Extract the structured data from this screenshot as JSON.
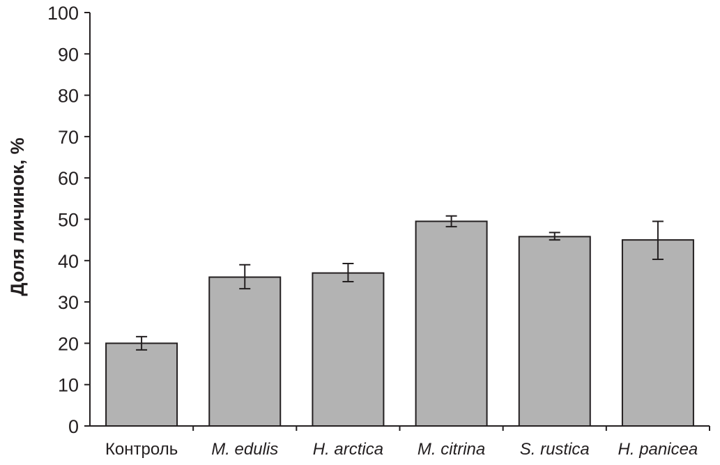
{
  "chart_data": {
    "type": "bar",
    "title": "",
    "xlabel": "",
    "ylabel": "Доля личинок, %",
    "ylim": [
      0,
      100
    ],
    "yticks": [
      0,
      10,
      20,
      30,
      40,
      50,
      60,
      70,
      80,
      90,
      100
    ],
    "grid": false,
    "categories": [
      "Контроль",
      "M. edulis",
      "H. arctica",
      "M. citrina",
      "S. rustica",
      "H. panicea"
    ],
    "category_italic": [
      false,
      true,
      true,
      true,
      true,
      true
    ],
    "values": [
      20,
      36,
      37,
      49.5,
      45.8,
      45
    ],
    "error_low": [
      18.4,
      33.2,
      34.9,
      48.2,
      45.0,
      40.3
    ],
    "error_high": [
      21.6,
      39.0,
      39.3,
      50.8,
      46.8,
      49.5
    ],
    "colors": {
      "bar_fill": "#b3b3b3",
      "bar_stroke": "#231f20",
      "axis": "#231f20",
      "text": "#231f20"
    }
  }
}
